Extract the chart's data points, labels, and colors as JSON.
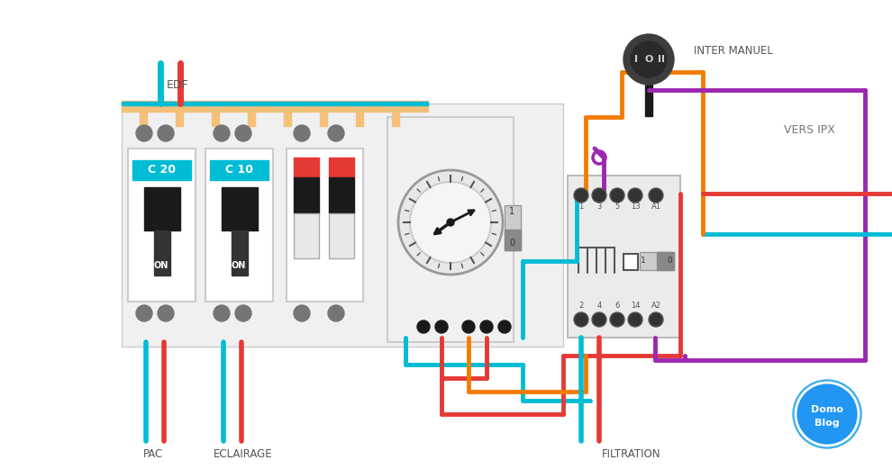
{
  "bg_color": "#ffffff",
  "title": "domotique-piscine-automatisation-filtration-piscine-ipx-schema",
  "colors": {
    "cyan": "#00bcd4",
    "red": "#e53935",
    "orange": "#f57c00",
    "purple": "#9c27b0",
    "dark_gray": "#424242",
    "mid_gray": "#757575",
    "light_gray": "#eeeeee",
    "very_light_gray": "#f5f5f5",
    "panel_bg": "#f0f0f0",
    "white": "#ffffff",
    "black": "#1a1a1a",
    "blue_label": "#00bcd4",
    "tan": "#f5c07a",
    "connector_gray": "#888888"
  },
  "labels": {
    "edf": "EDF",
    "pac": "PAC",
    "eclairage": "ECLAIRAGE",
    "filtration": "FILTRATION",
    "inter_manuel": "INTER MANUEL",
    "vers_ipx": "VERS IPX",
    "c20": "C 20",
    "c10": "C 10",
    "on": "ON",
    "label_1": "1",
    "label_3": "3",
    "label_5": "5",
    "label_13": "13",
    "label_A1": "A1",
    "label_2": "2",
    "label_4": "4",
    "label_6": "6",
    "label_14": "14",
    "label_A2": "A2",
    "label_0": "0",
    "label_1b": "1"
  }
}
